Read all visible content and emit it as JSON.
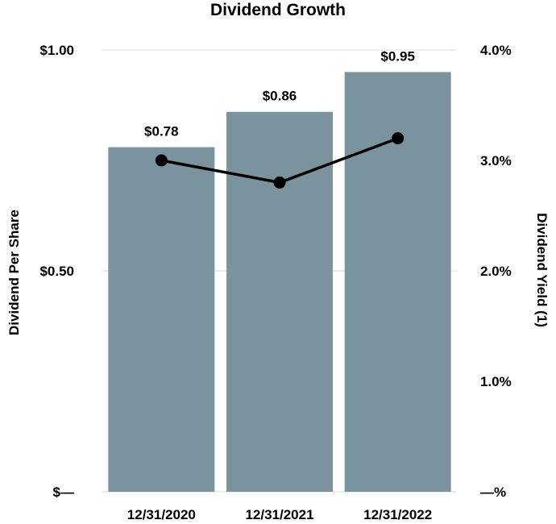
{
  "chart_data": {
    "type": "bar",
    "title": "Dividend Growth",
    "categories": [
      "12/31/2020",
      "12/31/2021",
      "12/31/2022"
    ],
    "series": [
      {
        "name": "Dividend Per Share",
        "type": "bar",
        "axis": "left",
        "values": [
          0.78,
          0.86,
          0.95
        ],
        "labels": [
          "$0.78",
          "$0.86",
          "$0.95"
        ]
      },
      {
        "name": "Dividend Yield (1)",
        "type": "line",
        "axis": "right",
        "values": [
          3.0,
          2.8,
          3.2
        ]
      }
    ],
    "ylabel": "Dividend Per Share",
    "y2label": "Dividend Yield (1)",
    "ylim": [
      0,
      1.0
    ],
    "y2lim": [
      0,
      4.0
    ],
    "yticks": [
      0,
      0.5,
      1.0
    ],
    "ytick_labels": [
      "$—",
      "$0.50",
      "$1.00"
    ],
    "y2ticks": [
      0,
      1.0,
      2.0,
      3.0,
      4.0
    ],
    "y2tick_labels": [
      "—%",
      "1.0%",
      "2.0%",
      "3.0%",
      "4.0%"
    ],
    "grid": true,
    "colors": {
      "bar": "#7b939c",
      "line": "#000000",
      "grid": "#e6e6e6"
    }
  }
}
